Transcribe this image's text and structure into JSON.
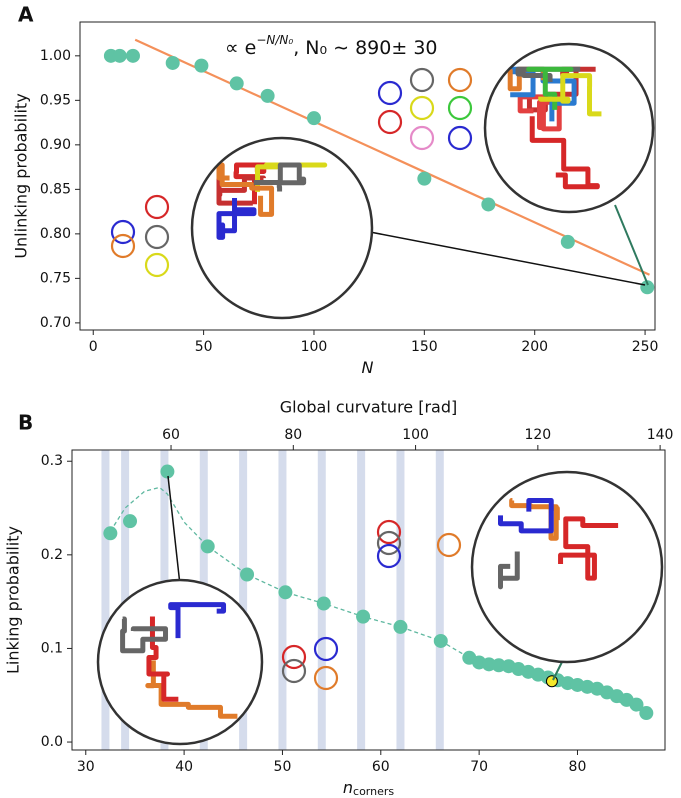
{
  "chart_data": [
    {
      "type": "scatter",
      "panel": "A",
      "ylabel": "Unlinking probability",
      "xlabel": "N",
      "annotation": [
        "∝ e",
        "−N/N₀",
        ",  N₀ ∼ 890± 30"
      ],
      "xlim": [
        -6,
        254.5
      ],
      "xticks": [
        0,
        50,
        100,
        150,
        200,
        250
      ],
      "ylim": [
        0.692,
        1.038
      ],
      "yticks": [
        {
          "value": 0.7,
          "label": "0.70"
        },
        {
          "value": 0.75,
          "label": "0.75"
        },
        {
          "value": 0.8,
          "label": "0.80"
        },
        {
          "value": 0.85,
          "label": "0.85"
        },
        {
          "value": 0.9,
          "label": "0.90"
        },
        {
          "value": 0.95,
          "label": "0.95"
        },
        {
          "value": 1,
          "label": "1.00"
        }
      ],
      "series": [
        {
          "style": "line",
          "color": "#f4905a",
          "x": [
            19,
            252
          ],
          "values": [
            1.018,
            0.754
          ]
        },
        {
          "style": "markers",
          "color": "#5fc3a4",
          "x": [
            8,
            12,
            18,
            36,
            49,
            65,
            79,
            100,
            150,
            179,
            215,
            251
          ],
          "values": [
            1,
            1,
            1,
            0.992,
            0.989,
            0.969,
            0.955,
            0.93,
            0.862,
            0.833,
            0.791,
            0.74
          ]
        }
      ]
    },
    {
      "type": "scatter",
      "panel": "B",
      "ylabel": "Linking probability",
      "xlabel": "n",
      "xlabel_sub": "corners",
      "x2label": "Global curvature [rad]",
      "xlim": [
        28.6,
        88.9
      ],
      "xticks": [
        30,
        40,
        50,
        60,
        70,
        80
      ],
      "x2lim": [
        43.8,
        140.8
      ],
      "x2ticks": [
        60,
        80,
        100,
        120,
        140
      ],
      "ylim": [
        -0.0085,
        0.312
      ],
      "yticks": [
        {
          "value": 0,
          "label": "0.0"
        },
        {
          "value": 0.1,
          "label": "0.1"
        },
        {
          "value": 0.2,
          "label": "0.2"
        },
        {
          "value": 0.3,
          "label": "0.3"
        }
      ],
      "bands": [
        32,
        34,
        38,
        42,
        46,
        50,
        54,
        58,
        62,
        66
      ],
      "band_color": "#d5dcec",
      "series": [
        {
          "style": "dashed",
          "color": "#5fb8a0",
          "x": [
            32.5,
            34,
            36,
            37.5,
            38.3,
            40,
            42.4,
            46.4,
            50.3,
            54.2,
            58.2,
            62,
            66.1,
            69,
            75,
            80,
            87
          ],
          "values": [
            0.225,
            0.25,
            0.268,
            0.272,
            0.265,
            0.235,
            0.209,
            0.179,
            0.16,
            0.148,
            0.134,
            0.123,
            0.108,
            0.09,
            0.075,
            0.061,
            0.031
          ]
        },
        {
          "style": "markers",
          "color": "#5fc3a4",
          "x": [
            32.5,
            34.5,
            38.3,
            42.4,
            46.4,
            50.3,
            54.2,
            58.2,
            62,
            66.1,
            69,
            70,
            71,
            72,
            73,
            74,
            75,
            76,
            77,
            78,
            79,
            80,
            81,
            82,
            83,
            84,
            85,
            86,
            87
          ],
          "values": [
            0.223,
            0.236,
            0.289,
            0.209,
            0.179,
            0.16,
            0.148,
            0.134,
            0.123,
            0.108,
            0.09,
            0.085,
            0.083,
            0.082,
            0.081,
            0.078,
            0.075,
            0.072,
            0.069,
            0.066,
            0.063,
            0.061,
            0.059,
            0.057,
            0.053,
            0.049,
            0.045,
            0.04,
            0.031
          ]
        },
        {
          "style": "markers",
          "color": "#f5e82a",
          "x": [
            77.4
          ],
          "values": [
            0.065
          ]
        }
      ]
    }
  ]
}
